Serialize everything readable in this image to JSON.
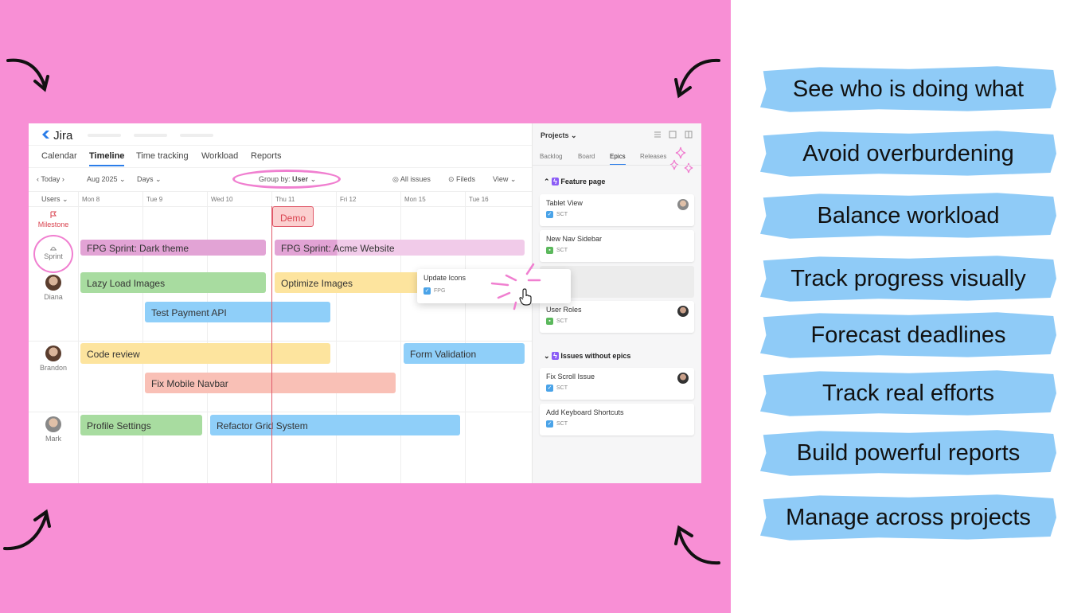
{
  "app": {
    "logo": "Jira",
    "tabs": [
      "Calendar",
      "Timeline",
      "Time tracking",
      "Workload",
      "Reports"
    ],
    "active_tab": "Timeline",
    "toolbar": {
      "today": "Today",
      "month": "Aug 2025",
      "scale": "Days",
      "group_by_label": "Group by:",
      "group_by_value": "User",
      "all_issues": "All issues",
      "fields": "Fileds",
      "view": "View"
    },
    "users_header": "Users",
    "days": [
      "Mon 8",
      "Tue 9",
      "Wed 10",
      "Thu 11",
      "Fri 12",
      "Mon 15",
      "Tue 16"
    ],
    "rows": {
      "milestone": "Milestone",
      "sprint": "Sprint",
      "users": [
        "Diana",
        "Brandon",
        "Mark"
      ]
    },
    "bars": {
      "demo": "Demo",
      "sprint1": "FPG Sprint: Dark theme",
      "sprint2": "FPG Sprint: Acme Website",
      "lazy": "Lazy Load Images",
      "optimize": "Optimize Images",
      "payment": "Test Payment API",
      "code_review": "Code review",
      "form": "Form Validation",
      "navbar": "Fix Mobile Navbar",
      "profile": "Profile Settings",
      "refactor": "Refactor Grid System"
    },
    "drag_card": {
      "title": "Update Icons",
      "code": "FPG"
    },
    "colors": {
      "background": "#f88fd5",
      "today_line": "#e05a6a",
      "brush": "#8fcbf7"
    }
  },
  "panel": {
    "title": "Projects",
    "tabs": [
      "Backlog",
      "Board",
      "Epics",
      "Releases"
    ],
    "active_tab": "Epics",
    "groups": [
      {
        "title": "Feature page",
        "cards": [
          {
            "title": "Tablet View",
            "code": "SCT"
          },
          {
            "title": "New Nav Sidebar",
            "code": "SCT"
          },
          {
            "title": "User Roles",
            "code": "SCT"
          }
        ]
      },
      {
        "title": "Issues without epics",
        "cards": [
          {
            "title": "Fix Scroll Issue",
            "code": "SCT"
          },
          {
            "title": "Add Keyboard Shortcuts",
            "code": "SCT"
          }
        ]
      }
    ]
  },
  "features": [
    "See who is doing what",
    "Avoid overburdening",
    "Balance workload",
    "Track progress visually",
    "Forecast deadlines",
    "Track real efforts",
    "Build powerful reports",
    "Manage across projects"
  ]
}
